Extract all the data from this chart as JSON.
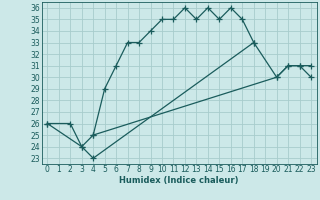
{
  "xlabel": "Humidex (Indice chaleur)",
  "bg_color": "#cce8e8",
  "grid_color": "#a8cccc",
  "line_color": "#1a5c5c",
  "xlim": [
    -0.5,
    23.5
  ],
  "ylim": [
    22.5,
    36.5
  ],
  "yticks": [
    23,
    24,
    25,
    26,
    27,
    28,
    29,
    30,
    31,
    32,
    33,
    34,
    35,
    36
  ],
  "xticks": [
    0,
    1,
    2,
    3,
    4,
    5,
    6,
    7,
    8,
    9,
    10,
    11,
    12,
    13,
    14,
    15,
    16,
    17,
    18,
    19,
    20,
    21,
    22,
    23
  ],
  "line1_x": [
    0,
    2,
    3,
    4,
    5,
    6,
    7,
    8,
    9,
    10,
    11,
    12,
    13,
    14,
    15,
    16,
    17,
    18
  ],
  "line1_y": [
    26,
    26,
    24,
    25,
    29,
    31,
    33,
    33,
    34,
    35,
    35,
    36,
    35,
    36,
    35,
    36,
    35,
    33
  ],
  "line2_x": [
    0,
    3,
    4,
    18,
    20,
    21,
    22,
    23
  ],
  "line2_y": [
    26,
    24,
    23,
    33,
    30,
    31,
    31,
    31
  ],
  "line3_x": [
    4,
    20,
    21,
    22,
    23
  ],
  "line3_y": [
    25,
    30,
    31,
    31,
    30
  ]
}
